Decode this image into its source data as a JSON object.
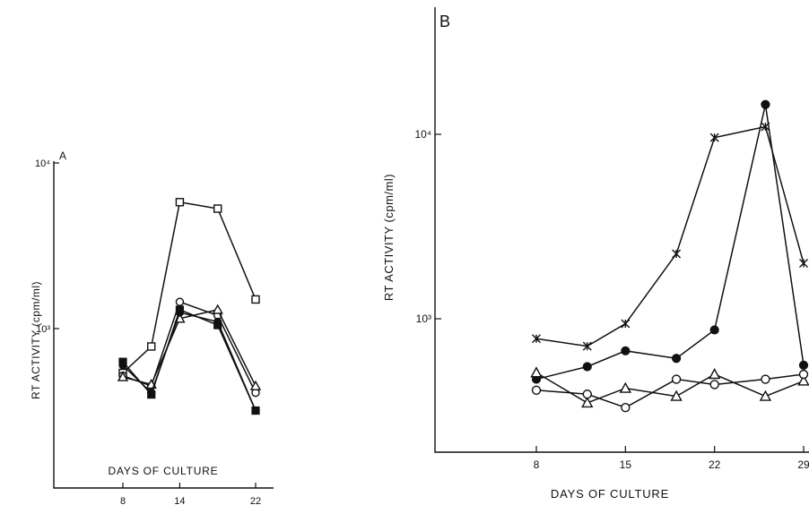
{
  "chart_data": [
    {
      "panel_label": "A",
      "type": "line",
      "ylabel": "RT ACTIVITY (cpm/ml)",
      "xlabel": "DAYS OF CULTURE",
      "x_ticks": [
        "8",
        "14",
        "22"
      ],
      "y_ticks": [
        {
          "value": 1000,
          "label": "10³"
        },
        {
          "value": 10000,
          "label": "10⁴"
        }
      ],
      "xlim": [
        3,
        23
      ],
      "ylim": [
        180,
        10000
      ],
      "yscale": "log",
      "grid": false,
      "series": [
        {
          "marker": "open-square",
          "x": [
            8,
            11,
            14,
            18,
            22
          ],
          "y": [
            540,
            780,
            5800,
            5300,
            1500
          ]
        },
        {
          "marker": "open-circle",
          "x": [
            8,
            11,
            14,
            18,
            22
          ],
          "y": [
            520,
            450,
            1450,
            1200,
            410
          ]
        },
        {
          "marker": "open-triangle",
          "x": [
            8,
            11,
            14,
            18,
            22
          ],
          "y": [
            510,
            460,
            1150,
            1300,
            450
          ]
        },
        {
          "marker": "filled-circle",
          "x": [
            8,
            11,
            14,
            18,
            22
          ],
          "y": [
            600,
            410,
            1250,
            1100,
            320
          ]
        },
        {
          "marker": "filled-square",
          "x": [
            8,
            11,
            14,
            18,
            22
          ],
          "y": [
            630,
            400,
            1300,
            1050,
            320
          ]
        }
      ]
    },
    {
      "panel_label": "B",
      "type": "line",
      "ylabel": "RT ACTIVITY (cpm/ml)",
      "xlabel": "DAYS OF CULTURE",
      "x_ticks": [
        "8",
        "15",
        "22",
        "29"
      ],
      "y_ticks": [
        {
          "value": 1000,
          "label": "10³"
        },
        {
          "value": 10000,
          "label": "10⁴"
        }
      ],
      "xlim": [
        1,
        29
      ],
      "ylim": [
        100,
        60000
      ],
      "yscale": "log",
      "grid": false,
      "series": [
        {
          "marker": "asterisk",
          "x": [
            8,
            12,
            15,
            19,
            22,
            26,
            29
          ],
          "y": [
            780,
            710,
            940,
            2250,
            9600,
            11000,
            2000
          ]
        },
        {
          "marker": "filled-circle",
          "x": [
            8,
            12,
            15,
            19,
            22,
            26,
            29
          ],
          "y": [
            470,
            550,
            670,
            610,
            870,
            14500,
            560
          ]
        },
        {
          "marker": "open-triangle",
          "x": [
            8,
            12,
            15,
            19,
            22,
            26,
            29
          ],
          "y": [
            510,
            350,
            420,
            380,
            500,
            380,
            460
          ]
        },
        {
          "marker": "open-circle",
          "x": [
            8,
            12,
            15,
            19,
            22,
            26,
            29
          ],
          "y": [
            410,
            390,
            330,
            470,
            440,
            470,
            500
          ]
        }
      ]
    }
  ]
}
